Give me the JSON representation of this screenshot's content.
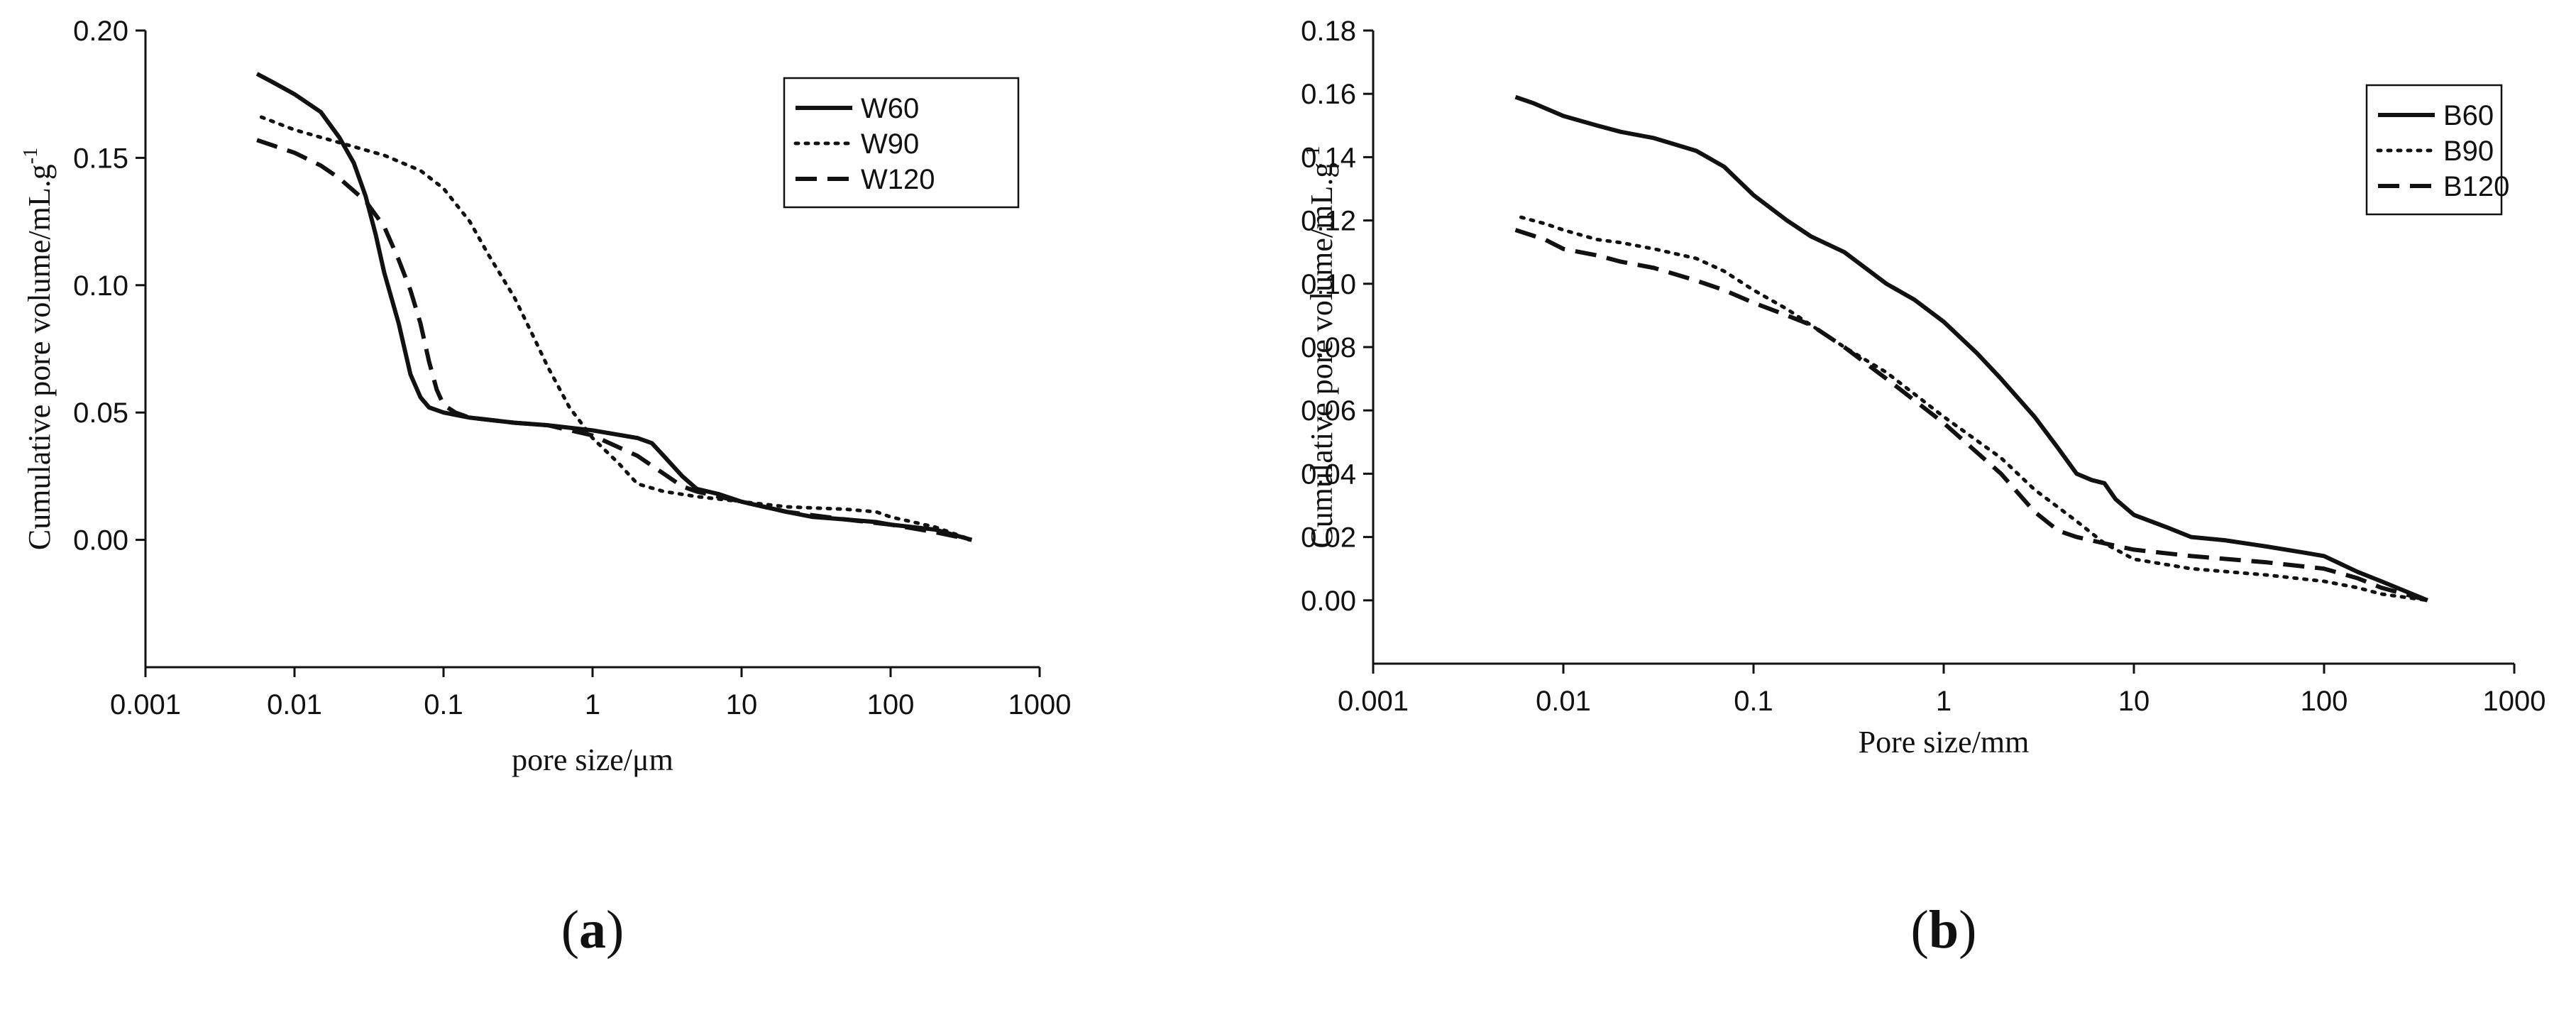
{
  "chart_data": [
    {
      "type": "line",
      "panel_label": "(a)",
      "panel_letter": "a",
      "xlabel": "pore size/μm",
      "ylabel": "Cumulative pore volume/mL.g",
      "ylabel_sup": "-1",
      "xscale": "log",
      "xlim": [
        0.001,
        1000
      ],
      "ylim": [
        -0.05,
        0.2
      ],
      "xticks": [
        0.001,
        0.01,
        0.1,
        1,
        10,
        100,
        1000
      ],
      "xtick_labels": [
        "0.001",
        "0.01",
        "0.1",
        "1",
        "10",
        "100",
        "1000"
      ],
      "yticks": [
        0.0,
        0.05,
        0.1,
        0.15,
        0.2
      ],
      "ytick_labels": [
        "0.00",
        "0.05",
        "0.10",
        "0.15",
        "0.20"
      ],
      "legend_position": "top-right",
      "grid": false,
      "series": [
        {
          "name": "W60",
          "style": "solid",
          "x": [
            0.0056,
            0.007,
            0.01,
            0.015,
            0.02,
            0.025,
            0.03,
            0.035,
            0.04,
            0.05,
            0.06,
            0.07,
            0.08,
            0.1,
            0.15,
            0.3,
            0.5,
            1,
            2,
            2.5,
            3,
            4,
            5,
            7,
            10,
            20,
            30,
            50,
            80,
            100,
            200,
            350
          ],
          "y": [
            0.183,
            0.18,
            0.175,
            0.168,
            0.158,
            0.148,
            0.135,
            0.12,
            0.105,
            0.085,
            0.065,
            0.056,
            0.052,
            0.05,
            0.048,
            0.046,
            0.045,
            0.043,
            0.04,
            0.038,
            0.033,
            0.025,
            0.02,
            0.018,
            0.015,
            0.011,
            0.009,
            0.008,
            0.007,
            0.006,
            0.004,
            0.0
          ]
        },
        {
          "name": "W90",
          "style": "dotted",
          "x": [
            0.006,
            0.01,
            0.02,
            0.04,
            0.07,
            0.1,
            0.15,
            0.2,
            0.3,
            0.4,
            0.5,
            0.7,
            1,
            1.5,
            2,
            3,
            5,
            10,
            20,
            50,
            80,
            100,
            200,
            350
          ],
          "y": [
            0.166,
            0.161,
            0.156,
            0.151,
            0.145,
            0.138,
            0.125,
            0.112,
            0.095,
            0.08,
            0.068,
            0.052,
            0.04,
            0.03,
            0.022,
            0.019,
            0.017,
            0.015,
            0.013,
            0.012,
            0.011,
            0.009,
            0.005,
            0.0
          ]
        },
        {
          "name": "W120",
          "style": "dashed",
          "x": [
            0.0056,
            0.01,
            0.015,
            0.02,
            0.03,
            0.04,
            0.05,
            0.06,
            0.07,
            0.08,
            0.09,
            0.1,
            0.12,
            0.15,
            0.3,
            0.5,
            1,
            2,
            3,
            4,
            5,
            7,
            10,
            20,
            50,
            100,
            200,
            350
          ],
          "y": [
            0.157,
            0.152,
            0.147,
            0.142,
            0.133,
            0.123,
            0.11,
            0.098,
            0.085,
            0.07,
            0.059,
            0.053,
            0.05,
            0.048,
            0.046,
            0.045,
            0.041,
            0.033,
            0.026,
            0.021,
            0.019,
            0.017,
            0.015,
            0.011,
            0.008,
            0.006,
            0.003,
            0.0
          ]
        }
      ]
    },
    {
      "type": "line",
      "panel_label": "(b)",
      "panel_letter": "b",
      "xlabel": "Pore size/mm",
      "ylabel": "Cumulative pore volume/mL.g",
      "ylabel_sup": "-1",
      "xscale": "log",
      "xlim": [
        0.001,
        1000
      ],
      "ylim": [
        -0.02,
        0.18
      ],
      "xticks": [
        0.001,
        0.01,
        0.1,
        1,
        10,
        100,
        1000
      ],
      "xtick_labels": [
        "0.001",
        "0.01",
        "0.1",
        "1",
        "10",
        "100",
        "1000"
      ],
      "yticks": [
        0.0,
        0.02,
        0.04,
        0.06,
        0.08,
        0.1,
        0.12,
        0.14,
        0.16,
        0.18
      ],
      "ytick_labels": [
        "0.00",
        "0.02",
        "0.04",
        "0.06",
        "0.08",
        "0.10",
        "0.12",
        "0.14",
        "0.16",
        "0.18"
      ],
      "legend_position": "top-right",
      "grid": false,
      "series": [
        {
          "name": "B60",
          "style": "solid",
          "x": [
            0.0056,
            0.007,
            0.01,
            0.015,
            0.02,
            0.03,
            0.05,
            0.07,
            0.1,
            0.15,
            0.2,
            0.3,
            0.5,
            0.7,
            1,
            1.5,
            2,
            3,
            4,
            5,
            6,
            7,
            8,
            10,
            15,
            20,
            30,
            50,
            80,
            100,
            150,
            200,
            350
          ],
          "y": [
            0.159,
            0.157,
            0.153,
            0.15,
            0.148,
            0.146,
            0.142,
            0.137,
            0.128,
            0.12,
            0.115,
            0.11,
            0.1,
            0.095,
            0.088,
            0.078,
            0.07,
            0.058,
            0.048,
            0.04,
            0.038,
            0.037,
            0.032,
            0.027,
            0.023,
            0.02,
            0.019,
            0.017,
            0.015,
            0.014,
            0.009,
            0.006,
            0.0
          ]
        },
        {
          "name": "B90",
          "style": "dotted",
          "x": [
            0.006,
            0.008,
            0.01,
            0.015,
            0.02,
            0.03,
            0.05,
            0.07,
            0.1,
            0.15,
            0.2,
            0.3,
            0.5,
            1,
            2,
            3,
            5,
            7,
            10,
            20,
            50,
            100,
            150,
            200,
            350
          ],
          "y": [
            0.121,
            0.119,
            0.117,
            0.114,
            0.113,
            0.111,
            0.108,
            0.104,
            0.098,
            0.092,
            0.087,
            0.08,
            0.072,
            0.058,
            0.045,
            0.035,
            0.025,
            0.018,
            0.013,
            0.01,
            0.008,
            0.006,
            0.004,
            0.002,
            0.0
          ]
        },
        {
          "name": "B120",
          "style": "dashed",
          "x": [
            0.0056,
            0.008,
            0.01,
            0.015,
            0.02,
            0.03,
            0.05,
            0.07,
            0.1,
            0.15,
            0.2,
            0.3,
            0.5,
            1,
            2,
            3,
            4,
            5,
            7,
            10,
            20,
            50,
            100,
            150,
            200,
            350
          ],
          "y": [
            0.117,
            0.114,
            0.111,
            0.109,
            0.107,
            0.105,
            0.101,
            0.098,
            0.094,
            0.09,
            0.087,
            0.08,
            0.07,
            0.056,
            0.04,
            0.028,
            0.022,
            0.02,
            0.018,
            0.016,
            0.014,
            0.012,
            0.01,
            0.007,
            0.004,
            0.0
          ]
        }
      ]
    }
  ]
}
